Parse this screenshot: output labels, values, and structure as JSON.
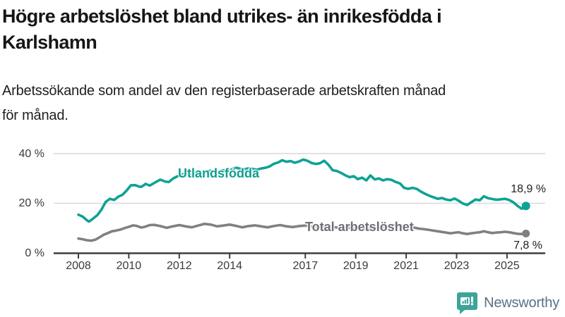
{
  "header": {
    "title_line1": "Högre arbetslöshet bland utrikes- än inrikesfödda i",
    "title_line2": "Karlshamn",
    "subtitle_line1": "Arbetssökande som andel av den registerbaserade arbetskraften månad",
    "subtitle_line2": "för månad."
  },
  "chart_data": {
    "type": "line",
    "title": "Högre arbetslöshet bland utrikes- än inrikesfödda i Karlshamn",
    "subtitle": "Arbetssökande som andel av den registerbaserade arbetskraften månad för månad.",
    "unit": "%",
    "grid": "horizontal",
    "x_range": [
      2008,
      2025.75
    ],
    "x_axis": {
      "ticks": [
        2008,
        2010,
        2012,
        2014,
        2017,
        2019,
        2021,
        2023,
        2025
      ],
      "labels": [
        "2008",
        "2010",
        "2012",
        "2014",
        "2017",
        "2019",
        "2021",
        "2023",
        "2025"
      ]
    },
    "y_axis": {
      "ticks": [
        0,
        20,
        40
      ],
      "labels": [
        "0 %",
        "20 %",
        "40 %"
      ],
      "range": [
        0,
        40
      ]
    },
    "series": [
      {
        "name": "Utlandsfödda",
        "color": "#0ea296",
        "end_label": "18,9 %",
        "end_value": 18.9,
        "points": [
          [
            2008.0,
            15.4
          ],
          [
            2008.17,
            14.6
          ],
          [
            2008.33,
            13.2
          ],
          [
            2008.42,
            12.6
          ],
          [
            2008.58,
            13.8
          ],
          [
            2008.75,
            15.2
          ],
          [
            2008.92,
            17.5
          ],
          [
            2009.08,
            20.5
          ],
          [
            2009.25,
            21.8
          ],
          [
            2009.42,
            21.3
          ],
          [
            2009.58,
            22.6
          ],
          [
            2009.75,
            23.4
          ],
          [
            2009.92,
            25.2
          ],
          [
            2010.08,
            27.2
          ],
          [
            2010.25,
            27.3
          ],
          [
            2010.42,
            26.7
          ],
          [
            2010.5,
            26.6
          ],
          [
            2010.67,
            27.8
          ],
          [
            2010.83,
            27.1
          ],
          [
            2011.08,
            28.6
          ],
          [
            2011.25,
            29.5
          ],
          [
            2011.42,
            28.8
          ],
          [
            2011.58,
            28.5
          ],
          [
            2011.75,
            29.9
          ],
          [
            2011.92,
            30.8
          ],
          [
            2012.08,
            31.5
          ],
          [
            2012.25,
            32.1
          ],
          [
            2012.42,
            31.6
          ],
          [
            2012.58,
            31.9
          ],
          [
            2012.75,
            32.4
          ],
          [
            2012.92,
            32.1
          ],
          [
            2013.08,
            32.7
          ],
          [
            2013.25,
            33.1
          ],
          [
            2013.42,
            32.6
          ],
          [
            2013.58,
            32.9
          ],
          [
            2013.75,
            33.3
          ],
          [
            2013.92,
            33.1
          ],
          [
            2014.08,
            33.8
          ],
          [
            2014.25,
            34.3
          ],
          [
            2014.42,
            33.9
          ],
          [
            2014.58,
            33.6
          ],
          [
            2014.75,
            34.1
          ],
          [
            2014.92,
            33.8
          ],
          [
            2015.08,
            33.5
          ],
          [
            2015.25,
            34.0
          ],
          [
            2015.42,
            34.3
          ],
          [
            2015.58,
            34.8
          ],
          [
            2015.75,
            35.9
          ],
          [
            2015.92,
            36.4
          ],
          [
            2016.08,
            37.3
          ],
          [
            2016.25,
            36.7
          ],
          [
            2016.42,
            37.0
          ],
          [
            2016.58,
            36.3
          ],
          [
            2016.75,
            36.8
          ],
          [
            2016.92,
            37.6
          ],
          [
            2017.08,
            37.1
          ],
          [
            2017.25,
            36.2
          ],
          [
            2017.42,
            35.8
          ],
          [
            2017.58,
            36.1
          ],
          [
            2017.75,
            37.1
          ],
          [
            2017.92,
            35.5
          ],
          [
            2018.08,
            33.3
          ],
          [
            2018.25,
            33.0
          ],
          [
            2018.42,
            32.2
          ],
          [
            2018.58,
            31.3
          ],
          [
            2018.75,
            30.5
          ],
          [
            2018.92,
            30.9
          ],
          [
            2019.08,
            29.7
          ],
          [
            2019.25,
            30.3
          ],
          [
            2019.42,
            29.2
          ],
          [
            2019.58,
            31.2
          ],
          [
            2019.75,
            29.6
          ],
          [
            2019.92,
            30.0
          ],
          [
            2020.08,
            29.2
          ],
          [
            2020.25,
            29.7
          ],
          [
            2020.42,
            29.4
          ],
          [
            2020.58,
            28.6
          ],
          [
            2020.75,
            28.0
          ],
          [
            2020.92,
            26.2
          ],
          [
            2021.08,
            25.8
          ],
          [
            2021.25,
            26.2
          ],
          [
            2021.42,
            25.8
          ],
          [
            2021.58,
            24.7
          ],
          [
            2021.75,
            23.8
          ],
          [
            2021.92,
            23.0
          ],
          [
            2022.08,
            22.4
          ],
          [
            2022.25,
            21.8
          ],
          [
            2022.42,
            22.1
          ],
          [
            2022.58,
            21.5
          ],
          [
            2022.75,
            21.2
          ],
          [
            2022.92,
            21.9
          ],
          [
            2023.08,
            21.0
          ],
          [
            2023.25,
            19.9
          ],
          [
            2023.42,
            19.3
          ],
          [
            2023.58,
            20.4
          ],
          [
            2023.75,
            21.5
          ],
          [
            2023.92,
            21.2
          ],
          [
            2024.08,
            22.8
          ],
          [
            2024.25,
            22.0
          ],
          [
            2024.42,
            21.7
          ],
          [
            2024.58,
            21.4
          ],
          [
            2024.75,
            21.6
          ],
          [
            2024.92,
            21.8
          ],
          [
            2025.08,
            21.3
          ],
          [
            2025.25,
            20.4
          ],
          [
            2025.42,
            18.9
          ],
          [
            2025.58,
            17.8
          ],
          [
            2025.67,
            18.3
          ],
          [
            2025.75,
            18.9
          ]
        ]
      },
      {
        "name": "Total arbetslöshet",
        "color": "#808080",
        "end_label": "7,8 %",
        "end_value": 7.8,
        "points": [
          [
            2008.0,
            5.8
          ],
          [
            2008.17,
            5.5
          ],
          [
            2008.33,
            5.1
          ],
          [
            2008.5,
            4.9
          ],
          [
            2008.67,
            5.3
          ],
          [
            2008.83,
            6.2
          ],
          [
            2009.0,
            7.3
          ],
          [
            2009.17,
            8.0
          ],
          [
            2009.33,
            8.7
          ],
          [
            2009.5,
            9.0
          ],
          [
            2009.67,
            9.4
          ],
          [
            2009.83,
            10.0
          ],
          [
            2010.0,
            10.5
          ],
          [
            2010.17,
            11.1
          ],
          [
            2010.33,
            10.8
          ],
          [
            2010.5,
            10.2
          ],
          [
            2010.67,
            10.6
          ],
          [
            2010.83,
            11.2
          ],
          [
            2011.0,
            11.3
          ],
          [
            2011.25,
            10.8
          ],
          [
            2011.5,
            10.1
          ],
          [
            2011.75,
            10.7
          ],
          [
            2012.0,
            11.2
          ],
          [
            2012.25,
            10.7
          ],
          [
            2012.5,
            10.3
          ],
          [
            2012.75,
            11.0
          ],
          [
            2013.0,
            11.7
          ],
          [
            2013.25,
            11.4
          ],
          [
            2013.5,
            10.7
          ],
          [
            2013.75,
            11.0
          ],
          [
            2014.0,
            11.4
          ],
          [
            2014.25,
            10.9
          ],
          [
            2014.5,
            10.3
          ],
          [
            2014.75,
            10.8
          ],
          [
            2015.0,
            11.1
          ],
          [
            2015.25,
            10.7
          ],
          [
            2015.5,
            10.3
          ],
          [
            2015.75,
            10.8
          ],
          [
            2016.0,
            11.2
          ],
          [
            2016.25,
            10.7
          ],
          [
            2016.5,
            10.4
          ],
          [
            2016.75,
            10.8
          ],
          [
            2017.0,
            11.0
          ],
          [
            2017.25,
            10.6
          ],
          [
            2017.5,
            10.2
          ],
          [
            2017.75,
            10.5
          ],
          [
            2018.0,
            10.6
          ],
          [
            2018.25,
            10.2
          ],
          [
            2018.5,
            9.8
          ],
          [
            2018.75,
            10.1
          ],
          [
            2019.0,
            10.2
          ],
          [
            2019.25,
            9.9
          ],
          [
            2019.5,
            9.6
          ],
          [
            2019.75,
            9.9
          ],
          [
            2020.0,
            10.1
          ],
          [
            2020.25,
            10.8
          ],
          [
            2020.5,
            11.2
          ],
          [
            2020.75,
            11.0
          ],
          [
            2021.0,
            10.7
          ],
          [
            2021.25,
            10.3
          ],
          [
            2021.5,
            9.8
          ],
          [
            2021.75,
            9.5
          ],
          [
            2022.0,
            9.1
          ],
          [
            2022.25,
            8.7
          ],
          [
            2022.5,
            8.3
          ],
          [
            2022.75,
            7.9
          ],
          [
            2022.92,
            8.1
          ],
          [
            2023.08,
            8.3
          ],
          [
            2023.25,
            7.9
          ],
          [
            2023.42,
            7.6
          ],
          [
            2023.58,
            7.9
          ],
          [
            2023.75,
            8.1
          ],
          [
            2023.92,
            8.3
          ],
          [
            2024.08,
            8.7
          ],
          [
            2024.25,
            8.3
          ],
          [
            2024.42,
            8.0
          ],
          [
            2024.58,
            8.2
          ],
          [
            2024.75,
            8.3
          ],
          [
            2024.92,
            8.5
          ],
          [
            2025.08,
            8.3
          ],
          [
            2025.25,
            8.0
          ],
          [
            2025.42,
            7.7
          ],
          [
            2025.58,
            7.6
          ],
          [
            2025.67,
            7.8
          ],
          [
            2025.75,
            7.8
          ]
        ]
      }
    ],
    "legend_position": "inline-labels",
    "colors": {
      "grid": "#d9d9d9",
      "axis": "#3e3e3e",
      "tick_text": "#3a3a3a"
    }
  },
  "footer": {
    "brand": "Newsworthy",
    "brand_color": "#587286",
    "icon_color": "#3da499"
  }
}
